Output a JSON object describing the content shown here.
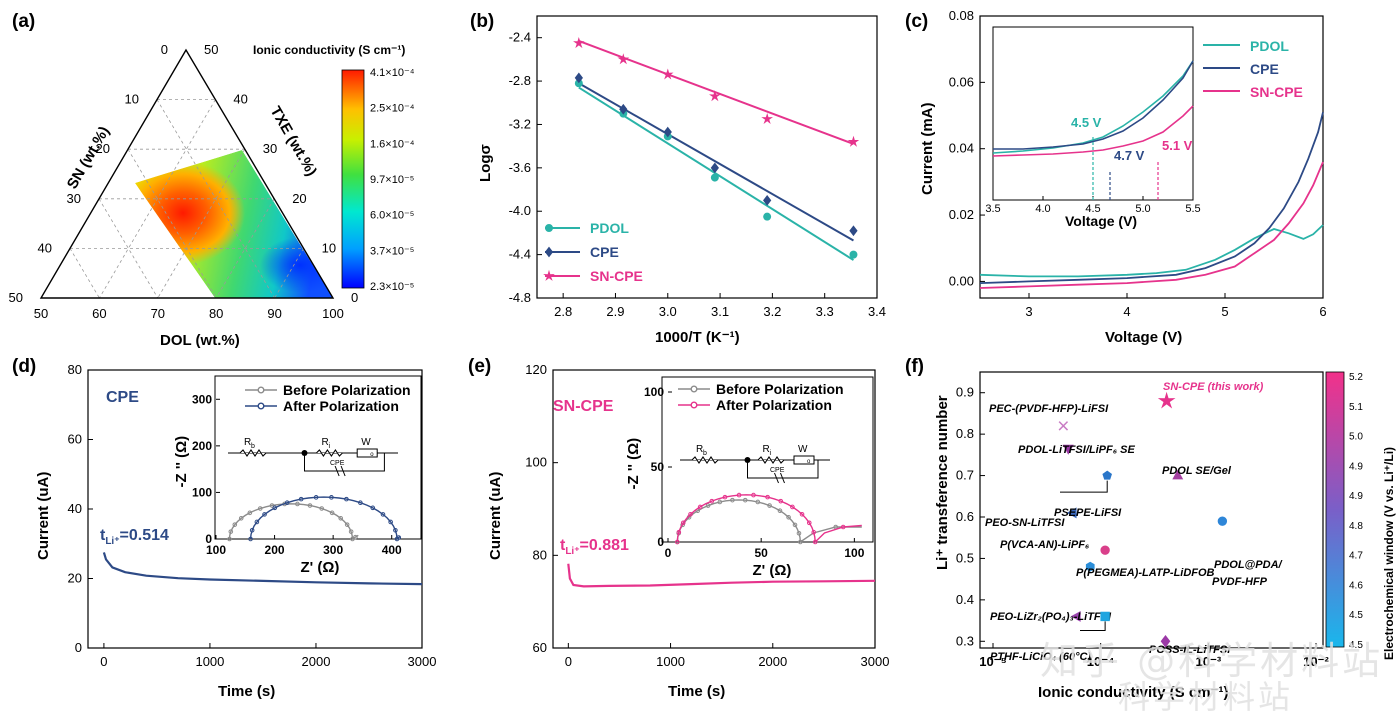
{
  "colors": {
    "teal": "#2ab3a8",
    "navy": "#2d4a86",
    "pink": "#e6338c",
    "gray": "#8c8c8c",
    "axis": "#000000"
  },
  "chart_data": [
    {
      "panel": "(a)",
      "type": "heatmap",
      "subtype": "ternary",
      "axes": {
        "left": "SN (wt.%)",
        "right": "TXE (wt.%)",
        "bottom": "DOL (wt.%)"
      },
      "left_ticks": [
        "0",
        "10",
        "20",
        "30",
        "40",
        "50"
      ],
      "right_ticks": [
        "0",
        "10",
        "20",
        "30",
        "40",
        "50"
      ],
      "bottom_ticks": [
        "50",
        "60",
        "70",
        "80",
        "90",
        "100"
      ],
      "colorbar_title": "Ionic conductivity (S cm⁻¹)",
      "colorbar_ticks": [
        "4.1×10⁻⁴",
        "2.5×10⁻⁴",
        "1.6×10⁻⁴",
        "9.7×10⁻⁵",
        "6.0×10⁻⁵",
        "3.7×10⁻⁵",
        "2.3×10⁻⁵"
      ],
      "peak": {
        "SN": 18,
        "TXE": 8,
        "DOL": 74
      }
    },
    {
      "panel": "(b)",
      "type": "scatter",
      "fit": "linear",
      "xlabel": "1000/T (K⁻¹)",
      "ylabel": "Logσ",
      "xlim": [
        2.75,
        3.4
      ],
      "ylim": [
        -4.8,
        -2.2
      ],
      "xticks": [
        "2.8",
        "2.9",
        "3.0",
        "3.1",
        "3.2",
        "3.3",
        "3.4"
      ],
      "yticks": [
        "-2.4",
        "-2.8",
        "-3.2",
        "-3.6",
        "-4.0",
        "-4.4",
        "-4.8"
      ],
      "x": [
        2.83,
        2.915,
        3.0,
        3.09,
        3.19,
        3.355
      ],
      "series": [
        {
          "name": "PDOL",
          "marker": "circle",
          "color": "#2ab3a8",
          "values": [
            -2.82,
            -3.1,
            -3.31,
            -3.69,
            -4.05,
            -4.4
          ],
          "fit": [
            -2.86,
            -4.45
          ]
        },
        {
          "name": "CPE",
          "marker": "diamond",
          "color": "#2d4a86",
          "values": [
            -2.77,
            -3.06,
            -3.27,
            -3.6,
            -3.9,
            -4.18
          ],
          "fit": [
            -2.82,
            -4.27
          ]
        },
        {
          "name": "SN-CPE",
          "marker": "star",
          "color": "#e6338c",
          "values": [
            -2.45,
            -2.6,
            -2.74,
            -2.94,
            -3.15,
            -3.36
          ],
          "fit": [
            -2.43,
            -3.38
          ]
        }
      ]
    },
    {
      "panel": "(c)",
      "type": "line",
      "xlabel": "Voltage (V)",
      "ylabel": "Current (mA)",
      "xlim": [
        2.5,
        6
      ],
      "ylim": [
        -0.005,
        0.08
      ],
      "xticks": [
        "3",
        "4",
        "5",
        "6"
      ],
      "yticks": [
        "0.00",
        "0.02",
        "0.04",
        "0.06",
        "0.08"
      ],
      "series": [
        {
          "name": "PDOL",
          "color": "#2ab3a8",
          "x": [
            2.5,
            3.0,
            3.5,
            4.0,
            4.3,
            4.6,
            4.9,
            5.1,
            5.3,
            5.5,
            5.65,
            5.8,
            5.9,
            6.0
          ],
          "y": [
            0.002,
            0.0015,
            0.0015,
            0.002,
            0.0025,
            0.0035,
            0.0065,
            0.0095,
            0.013,
            0.0158,
            0.0145,
            0.0128,
            0.0142,
            0.017
          ]
        },
        {
          "name": "CPE",
          "color": "#2d4a86",
          "x": [
            2.5,
            3.0,
            3.5,
            4.0,
            4.5,
            4.8,
            5.1,
            5.3,
            5.45,
            5.6,
            5.75,
            5.85,
            5.95,
            6.0
          ],
          "y": [
            -0.0005,
            0.0,
            0.0005,
            0.001,
            0.002,
            0.004,
            0.0075,
            0.0115,
            0.016,
            0.022,
            0.03,
            0.037,
            0.045,
            0.051
          ]
        },
        {
          "name": "SN-CPE",
          "color": "#e6338c",
          "x": [
            2.5,
            3.0,
            3.5,
            4.0,
            4.5,
            4.8,
            5.1,
            5.3,
            5.5,
            5.65,
            5.8,
            5.9,
            6.0
          ],
          "y": [
            -0.002,
            -0.0015,
            -0.001,
            -0.0005,
            0.0005,
            0.002,
            0.0045,
            0.0085,
            0.0125,
            0.0175,
            0.0235,
            0.029,
            0.036
          ]
        }
      ],
      "inset": {
        "xlabel": "Voltage (V)",
        "xlim": [
          3.5,
          5.5
        ],
        "xticks": [
          "3.5",
          "4.0",
          "4.5",
          "5.0",
          "5.5"
        ],
        "markers": [
          {
            "label": "4.5 V",
            "x": 4.5,
            "color": "#2ab3a8"
          },
          {
            "label": "4.7 V",
            "x": 4.67,
            "color": "#2d4a86"
          },
          {
            "label": "5.1 V",
            "x": 5.15,
            "color": "#e6338c"
          }
        ]
      }
    },
    {
      "panel": "(d)",
      "type": "line",
      "xlabel": "Time (s)",
      "ylabel": "Current (uA)",
      "xlim": [
        -150,
        3000
      ],
      "ylim": [
        0,
        80
      ],
      "xticks": [
        "0",
        "1000",
        "2000",
        "3000"
      ],
      "yticks": [
        "0",
        "20",
        "40",
        "60",
        "80"
      ],
      "series": [
        {
          "name": "CPE",
          "color": "#2d4a86",
          "x": [
            0,
            20,
            80,
            200,
            400,
            700,
            1000,
            1500,
            2000,
            2500,
            3000
          ],
          "y": [
            27.5,
            25.5,
            23.2,
            21.8,
            20.8,
            20.1,
            19.7,
            19.3,
            18.9,
            18.6,
            18.4
          ]
        }
      ],
      "label": "CPE",
      "annotation": "t_Li+=0.514",
      "inset": {
        "xlabel": "Z' (Ω)",
        "ylabel": "-Z '' (Ω)",
        "xlim": [
          100,
          450
        ],
        "ylim": [
          0,
          350
        ],
        "xticks": [
          "100",
          "200",
          "300",
          "400"
        ],
        "yticks": [
          "0",
          "100",
          "200",
          "300"
        ],
        "legend": [
          "Before Polarization",
          "After Polarization"
        ],
        "series": [
          {
            "name": "Before Polarization",
            "color": "#8c8c8c",
            "center": 228,
            "radius": 105,
            "tail": [
              [
                333,
                0
              ],
              [
                338,
                4
              ],
              [
                343,
                8
              ]
            ]
          },
          {
            "name": "After Polarization",
            "color": "#2d4a86",
            "center": 284,
            "radius": 125,
            "tail": [
              [
                409,
                0
              ],
              [
                412,
                3
              ],
              [
                415,
                6
              ]
            ]
          }
        ],
        "circuit": [
          "R",
          "b",
          "R",
          "i",
          "W",
          "o",
          "CPE"
        ]
      }
    },
    {
      "panel": "(e)",
      "type": "line",
      "xlabel": "Time (s)",
      "ylabel": "Current (uA)",
      "xlim": [
        -150,
        3000
      ],
      "ylim": [
        60,
        120
      ],
      "xticks": [
        "0",
        "1000",
        "2000",
        "3000"
      ],
      "yticks": [
        "60",
        "80",
        "100",
        "120"
      ],
      "series": [
        {
          "name": "SN-CPE",
          "color": "#e6338c",
          "x": [
            0,
            15,
            50,
            150,
            400,
            800,
            1200,
            1600,
            2000,
            2500,
            3000
          ],
          "y": [
            78.2,
            75.0,
            73.6,
            73.3,
            73.4,
            73.5,
            73.8,
            74.1,
            74.3,
            74.4,
            74.5
          ]
        }
      ],
      "label": "SN-CPE",
      "annotation": "t_Li+=0.881",
      "inset": {
        "xlabel": "Z' (Ω)",
        "ylabel": "-Z '' (Ω)",
        "xlim": [
          0,
          110
        ],
        "ylim": [
          0,
          110
        ],
        "xticks": [
          "0",
          "50",
          "100"
        ],
        "yticks": [
          "0",
          "50",
          "100"
        ],
        "legend": [
          "Before Polarization",
          "After Polarization"
        ],
        "series": [
          {
            "name": "Before Polarization",
            "color": "#8c8c8c",
            "center": 38,
            "radius": 33,
            "tail": [
              [
                78,
                6
              ],
              [
                90,
                10
              ],
              [
                104,
                10
              ]
            ]
          },
          {
            "name": "After Polarization",
            "color": "#e6338c",
            "center": 42,
            "radius": 37,
            "tail": [
              [
                84,
                6
              ],
              [
                94,
                10
              ],
              [
                104,
                11
              ]
            ]
          }
        ],
        "circuit": [
          "R",
          "b",
          "R",
          "i",
          "W",
          "o",
          "CPE"
        ]
      }
    },
    {
      "panel": "(f)",
      "type": "scatter",
      "xlabel": "Ionic conductivity (S cm⁻¹)",
      "ylabel": "Li⁺ transference number",
      "xscale": "log",
      "xlim": [
        1e-05,
        0.01
      ],
      "ylim": [
        0.25,
        0.95
      ],
      "xticks": [
        "10⁻⁵",
        "10⁻⁴",
        "10⁻³",
        "10⁻²"
      ],
      "yticks": [
        "0.3",
        "0.4",
        "0.5",
        "0.6",
        "0.7",
        "0.8",
        "0.9"
      ],
      "colorbar_title": "Electrochemical window (V vs. Li⁺/Li)",
      "colorbar_ticks": [
        "5.2",
        "5.1",
        "5.0",
        "4.9",
        "4.9",
        "4.8",
        "4.7",
        "4.6",
        "4.5",
        "4.5"
      ],
      "points": [
        {
          "label": "SN-CPE (this work)",
          "x": 0.00041,
          "y": 0.88,
          "marker": "star",
          "color": "#e6338c"
        },
        {
          "label": "PEC-(PVDF-HFP)-LiFSI",
          "x": 4.5e-05,
          "y": 0.82,
          "marker": "x",
          "color": "#c97cc4"
        },
        {
          "label": "PDOL-LiTFSI/LiPF₆ SE",
          "x": 5e-05,
          "y": 0.765,
          "marker": "tri_down",
          "color": "#9b39a6"
        },
        {
          "label": "PEO-SN-LiTFSI",
          "x": 0.000115,
          "y": 0.7,
          "marker": "pentagon",
          "color": "#2b76c9"
        },
        {
          "label": "PDOL SE/Gel",
          "x": 0.00052,
          "y": 0.7,
          "marker": "tri_up",
          "color": "#a43fa0"
        },
        {
          "label": "PSEPE-LiFSI",
          "x": 5.5e-05,
          "y": 0.61,
          "marker": "tri_left",
          "color": "#3a68bc"
        },
        {
          "label": "PDOL@PDA/ PVDF-HFP",
          "x": 0.00135,
          "y": 0.59,
          "marker": "circle",
          "color": "#2e86d8"
        },
        {
          "label": "P(VCA-AN)-LiPF₆",
          "x": 0.00011,
          "y": 0.52,
          "marker": "circle",
          "color": "#d93f8a"
        },
        {
          "label": "P(PEGMEA)-LATP-LiDFOB",
          "x": 8e-05,
          "y": 0.48,
          "marker": "hexagon",
          "color": "#2b8ed9"
        },
        {
          "label": "PEO-LiZr₂(PO₄)₃-LiTFSI",
          "x": 6e-05,
          "y": 0.36,
          "marker": "tri_left",
          "color": "#9d47b0"
        },
        {
          "label": "PTHF-LiClO₄ (60°C)",
          "x": 0.00011,
          "y": 0.36,
          "marker": "square",
          "color": "#1ea5e0"
        },
        {
          "label": "POSS-IL-LiTFSI",
          "x": 0.0004,
          "y": 0.3,
          "marker": "diamond",
          "color": "#9b39a6"
        }
      ]
    }
  ],
  "watermark": {
    "line1": "知乎 @科学材料站",
    "line2": "科学材料站"
  }
}
